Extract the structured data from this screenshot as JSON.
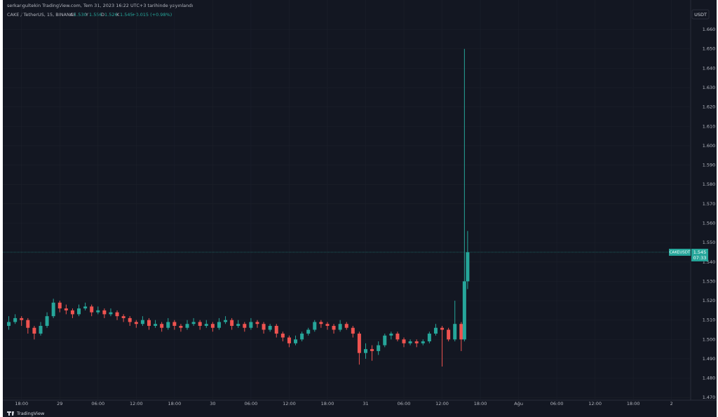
{
  "chart_data": {
    "type": "candlestick",
    "title": "serkangultekin TradingView.com, Tem 31, 2023 16:22 UTC+3 tarihinde yayınlandı",
    "subtitle": "CAKE / TetherUS, 15, BINANCE",
    "ohlc_legend": [
      {
        "name": "A",
        "value": 1.53,
        "label": "1.530"
      },
      {
        "name": "Y",
        "value": 1.556,
        "label": "1.556"
      },
      {
        "name": "D",
        "value": 1.526,
        "label": "1.526"
      },
      {
        "name": "K",
        "value": 1.545,
        "label": "1.545"
      }
    ],
    "change": "+0.015 (+0.98%)",
    "currency": "USDT",
    "symbol": "CAKEUSDT",
    "last_price": 1.545,
    "countdown": "07:33",
    "brand": "TradingView",
    "up_color": "#26a69a",
    "down_color": "#ef5350",
    "grid": true,
    "xlim": [
      15.5,
      123
    ],
    "xticks": [
      {
        "value": 18,
        "label": "18:00"
      },
      {
        "value": 24,
        "label": "29"
      },
      {
        "value": 30,
        "label": "06:00"
      },
      {
        "value": 36,
        "label": "12:00"
      },
      {
        "value": 42,
        "label": "18:00"
      },
      {
        "value": 48,
        "label": "30"
      },
      {
        "value": 54,
        "label": "06:00"
      },
      {
        "value": 60,
        "label": "12:00"
      },
      {
        "value": 66,
        "label": "18:00"
      },
      {
        "value": 72,
        "label": "31"
      },
      {
        "value": 78,
        "label": "06:00"
      },
      {
        "value": 84,
        "label": "12:00"
      },
      {
        "value": 90,
        "label": "18:00"
      },
      {
        "value": 96,
        "label": "Ağu"
      },
      {
        "value": 102,
        "label": "06:00"
      },
      {
        "value": 108,
        "label": "12:00"
      },
      {
        "value": 114,
        "label": "18:00"
      },
      {
        "value": 120,
        "label": "2"
      }
    ],
    "ylim": [
      1.469,
      1.668
    ],
    "yticks": [
      {
        "value": 1.47,
        "label": "1.470"
      },
      {
        "value": 1.48,
        "label": "1.480"
      },
      {
        "value": 1.49,
        "label": "1.490"
      },
      {
        "value": 1.5,
        "label": "1.500"
      },
      {
        "value": 1.51,
        "label": "1.510"
      },
      {
        "value": 1.52,
        "label": "1.520"
      },
      {
        "value": 1.53,
        "label": "1.530"
      },
      {
        "value": 1.54,
        "label": "1.540"
      },
      {
        "value": 1.55,
        "label": "1.550"
      },
      {
        "value": 1.56,
        "label": "1.560"
      },
      {
        "value": 1.57,
        "label": "1.570"
      },
      {
        "value": 1.58,
        "label": "1.580"
      },
      {
        "value": 1.59,
        "label": "1.590"
      },
      {
        "value": 1.6,
        "label": "1.600"
      },
      {
        "value": 1.61,
        "label": "1.610"
      },
      {
        "value": 1.62,
        "label": "1.620"
      },
      {
        "value": 1.63,
        "label": "1.630"
      },
      {
        "value": 1.64,
        "label": "1.640"
      },
      {
        "value": 1.65,
        "label": "1.650"
      },
      {
        "value": 1.66,
        "label": "1.660"
      }
    ],
    "x": [
      16,
      17,
      18,
      19,
      20,
      21,
      22,
      23,
      24,
      25,
      26,
      27,
      28,
      29,
      30,
      31,
      32,
      33,
      34,
      35,
      36,
      37,
      38,
      39,
      40,
      41,
      42,
      43,
      44,
      45,
      46,
      47,
      48,
      49,
      50,
      51,
      52,
      53,
      54,
      55,
      56,
      57,
      58,
      59,
      60,
      61,
      62,
      63,
      64,
      65,
      66,
      67,
      68,
      69,
      70,
      71,
      72,
      73,
      74,
      75,
      76,
      77,
      78,
      79,
      80,
      81,
      82,
      83,
      84,
      85,
      86,
      87,
      87.5,
      88
    ],
    "ohlc": [
      [
        1.507,
        1.512,
        1.505,
        1.509
      ],
      [
        1.509,
        1.513,
        1.508,
        1.511
      ],
      [
        1.511,
        1.512,
        1.507,
        1.51
      ],
      [
        1.51,
        1.511,
        1.503,
        1.506
      ],
      [
        1.506,
        1.507,
        1.5,
        1.503
      ],
      [
        1.503,
        1.509,
        1.502,
        1.507
      ],
      [
        1.507,
        1.514,
        1.506,
        1.512
      ],
      [
        1.512,
        1.521,
        1.511,
        1.519
      ],
      [
        1.519,
        1.52,
        1.514,
        1.516
      ],
      [
        1.516,
        1.518,
        1.513,
        1.515
      ],
      [
        1.515,
        1.516,
        1.511,
        1.513
      ],
      [
        1.513,
        1.518,
        1.512,
        1.516
      ],
      [
        1.516,
        1.519,
        1.515,
        1.517
      ],
      [
        1.517,
        1.518,
        1.512,
        1.514
      ],
      [
        1.514,
        1.517,
        1.513,
        1.515
      ],
      [
        1.515,
        1.516,
        1.511,
        1.513
      ],
      [
        1.513,
        1.516,
        1.512,
        1.514
      ],
      [
        1.514,
        1.515,
        1.51,
        1.512
      ],
      [
        1.512,
        1.513,
        1.509,
        1.511
      ],
      [
        1.511,
        1.512,
        1.507,
        1.509
      ],
      [
        1.509,
        1.51,
        1.506,
        1.508
      ],
      [
        1.508,
        1.512,
        1.507,
        1.51
      ],
      [
        1.51,
        1.511,
        1.505,
        1.507
      ],
      [
        1.507,
        1.51,
        1.506,
        1.508
      ],
      [
        1.508,
        1.509,
        1.504,
        1.506
      ],
      [
        1.506,
        1.511,
        1.505,
        1.509
      ],
      [
        1.509,
        1.51,
        1.505,
        1.507
      ],
      [
        1.507,
        1.508,
        1.504,
        1.506
      ],
      [
        1.506,
        1.51,
        1.505,
        1.508
      ],
      [
        1.508,
        1.511,
        1.507,
        1.509
      ],
      [
        1.509,
        1.51,
        1.505,
        1.507
      ],
      [
        1.507,
        1.51,
        1.506,
        1.508
      ],
      [
        1.508,
        1.509,
        1.504,
        1.506
      ],
      [
        1.506,
        1.511,
        1.505,
        1.509
      ],
      [
        1.509,
        1.512,
        1.508,
        1.51
      ],
      [
        1.51,
        1.511,
        1.505,
        1.507
      ],
      [
        1.507,
        1.51,
        1.506,
        1.508
      ],
      [
        1.508,
        1.509,
        1.504,
        1.506
      ],
      [
        1.506,
        1.511,
        1.505,
        1.509
      ],
      [
        1.509,
        1.51,
        1.506,
        1.508
      ],
      [
        1.508,
        1.509,
        1.503,
        1.505
      ],
      [
        1.505,
        1.508,
        1.504,
        1.507
      ],
      [
        1.507,
        1.508,
        1.501,
        1.503
      ],
      [
        1.503,
        1.504,
        1.499,
        1.501
      ],
      [
        1.501,
        1.502,
        1.496,
        1.498
      ],
      [
        1.498,
        1.502,
        1.497,
        1.5
      ],
      [
        1.5,
        1.504,
        1.499,
        1.503
      ],
      [
        1.503,
        1.506,
        1.502,
        1.505
      ],
      [
        1.505,
        1.51,
        1.504,
        1.509
      ],
      [
        1.509,
        1.51,
        1.506,
        1.508
      ],
      [
        1.508,
        1.509,
        1.505,
        1.507
      ],
      [
        1.507,
        1.508,
        1.503,
        1.505
      ],
      [
        1.505,
        1.51,
        1.504,
        1.508
      ],
      [
        1.508,
        1.509,
        1.505,
        1.506
      ],
      [
        1.506,
        1.507,
        1.501,
        1.503
      ],
      [
        1.503,
        1.504,
        1.487,
        1.493
      ],
      [
        1.493,
        1.498,
        1.49,
        1.495
      ],
      [
        1.495,
        1.497,
        1.489,
        1.494
      ],
      [
        1.494,
        1.499,
        1.492,
        1.497
      ],
      [
        1.497,
        1.503,
        1.496,
        1.502
      ],
      [
        1.502,
        1.504,
        1.5,
        1.503
      ],
      [
        1.503,
        1.504,
        1.499,
        1.5
      ],
      [
        1.5,
        1.501,
        1.496,
        1.498
      ],
      [
        1.498,
        1.5,
        1.497,
        1.499
      ],
      [
        1.499,
        1.5,
        1.496,
        1.498
      ],
      [
        1.498,
        1.5,
        1.497,
        1.499
      ],
      [
        1.499,
        1.504,
        1.498,
        1.503
      ],
      [
        1.503,
        1.508,
        1.502,
        1.506
      ],
      [
        1.506,
        1.507,
        1.486,
        1.505
      ],
      [
        1.505,
        1.506,
        1.499,
        1.5
      ],
      [
        1.5,
        1.52,
        1.499,
        1.508
      ],
      [
        1.508,
        1.509,
        1.494,
        1.5
      ],
      [
        1.5,
        1.65,
        1.499,
        1.53
      ],
      [
        1.53,
        1.556,
        1.526,
        1.545
      ]
    ]
  }
}
